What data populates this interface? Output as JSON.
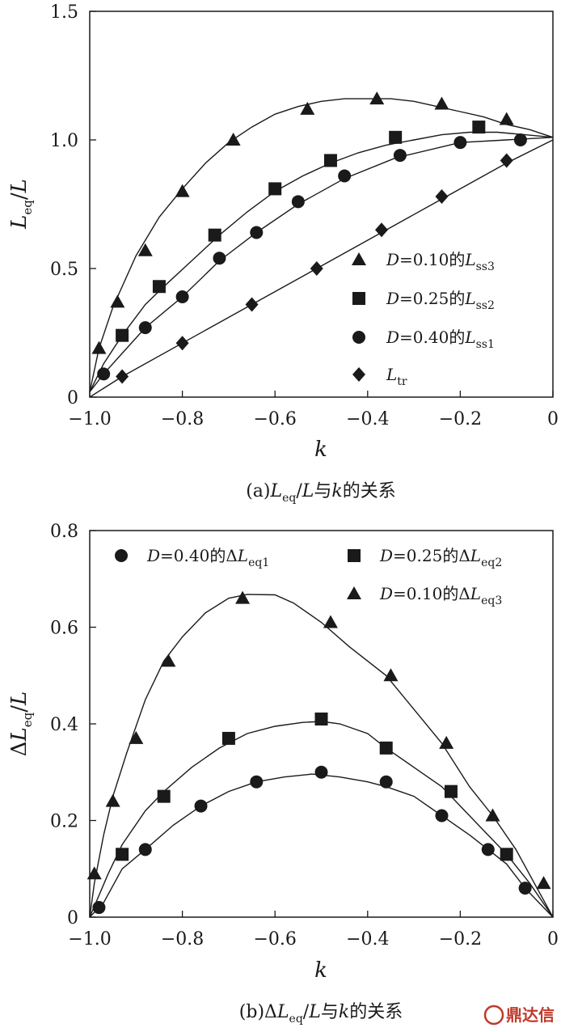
{
  "chart_data": [
    {
      "type": "line",
      "caption": "(a) Leq/L与k的关系",
      "xlabel": "k",
      "ylabel": "Leq/L",
      "xlim": [
        -1.0,
        0
      ],
      "ylim": [
        0,
        1.5
      ],
      "xticks": [
        -1.0,
        -0.8,
        -0.6,
        -0.4,
        -0.2,
        0
      ],
      "xtick_labels": [
        "−1.0",
        "−0.8",
        "−0.6",
        "−0.4",
        "−0.2",
        "0"
      ],
      "yticks": [
        0,
        0.5,
        1.0,
        1.5
      ],
      "ytick_labels": [
        "0",
        "0.5",
        "1.0",
        "1.5"
      ],
      "grid": false,
      "legend_position": "bottom-right",
      "series": [
        {
          "name": "D=0.10的Lss3",
          "marker": "triangle",
          "curve": [
            [
              -1.0,
              0.02
            ],
            [
              -0.98,
              0.19
            ],
            [
              -0.95,
              0.35
            ],
            [
              -0.9,
              0.55
            ],
            [
              -0.85,
              0.7
            ],
            [
              -0.8,
              0.81
            ],
            [
              -0.75,
              0.91
            ],
            [
              -0.7,
              0.99
            ],
            [
              -0.65,
              1.05
            ],
            [
              -0.6,
              1.1
            ],
            [
              -0.55,
              1.13
            ],
            [
              -0.5,
              1.15
            ],
            [
              -0.45,
              1.16
            ],
            [
              -0.4,
              1.16
            ],
            [
              -0.35,
              1.16
            ],
            [
              -0.3,
              1.15
            ],
            [
              -0.25,
              1.13
            ],
            [
              -0.2,
              1.11
            ],
            [
              -0.15,
              1.09
            ],
            [
              -0.1,
              1.06
            ],
            [
              -0.05,
              1.04
            ],
            [
              0.0,
              1.01
            ]
          ],
          "markers": [
            [
              -0.98,
              0.19
            ],
            [
              -0.94,
              0.37
            ],
            [
              -0.88,
              0.57
            ],
            [
              -0.8,
              0.8
            ],
            [
              -0.69,
              1.0
            ],
            [
              -0.53,
              1.12
            ],
            [
              -0.38,
              1.16
            ],
            [
              -0.24,
              1.14
            ],
            [
              -0.1,
              1.08
            ]
          ]
        },
        {
          "name": "D=0.25的Lss2",
          "marker": "square",
          "curve": [
            [
              -1.0,
              0.02
            ],
            [
              -0.97,
              0.13
            ],
            [
              -0.93,
              0.24
            ],
            [
              -0.88,
              0.36
            ],
            [
              -0.84,
              0.43
            ],
            [
              -0.78,
              0.53
            ],
            [
              -0.72,
              0.63
            ],
            [
              -0.66,
              0.72
            ],
            [
              -0.6,
              0.8
            ],
            [
              -0.54,
              0.86
            ],
            [
              -0.48,
              0.91
            ],
            [
              -0.42,
              0.95
            ],
            [
              -0.36,
              0.98
            ],
            [
              -0.3,
              1.0
            ],
            [
              -0.24,
              1.02
            ],
            [
              -0.18,
              1.03
            ],
            [
              -0.12,
              1.03
            ],
            [
              -0.06,
              1.02
            ],
            [
              0.0,
              1.01
            ]
          ],
          "markers": [
            [
              -0.93,
              0.24
            ],
            [
              -0.85,
              0.43
            ],
            [
              -0.73,
              0.63
            ],
            [
              -0.6,
              0.81
            ],
            [
              -0.48,
              0.92
            ],
            [
              -0.34,
              1.01
            ],
            [
              -0.16,
              1.05
            ]
          ]
        },
        {
          "name": "D=0.40的Lss1",
          "marker": "circle",
          "curve": [
            [
              -1.0,
              0.02
            ],
            [
              -0.97,
              0.09
            ],
            [
              -0.93,
              0.17
            ],
            [
              -0.88,
              0.27
            ],
            [
              -0.8,
              0.39
            ],
            [
              -0.72,
              0.53
            ],
            [
              -0.64,
              0.64
            ],
            [
              -0.55,
              0.75
            ],
            [
              -0.45,
              0.85
            ],
            [
              -0.34,
              0.93
            ],
            [
              -0.2,
              0.99
            ],
            [
              -0.1,
              1.0
            ],
            [
              0.0,
              1.01
            ]
          ],
          "markers": [
            [
              -0.97,
              0.09
            ],
            [
              -0.88,
              0.27
            ],
            [
              -0.8,
              0.39
            ],
            [
              -0.72,
              0.54
            ],
            [
              -0.64,
              0.64
            ],
            [
              -0.55,
              0.76
            ],
            [
              -0.45,
              0.86
            ],
            [
              -0.33,
              0.94
            ],
            [
              -0.2,
              0.99
            ],
            [
              -0.07,
              1.0
            ]
          ]
        },
        {
          "name": "Ltr",
          "marker": "diamond",
          "curve": [
            [
              -1.0,
              0.0
            ],
            [
              -0.93,
              0.08
            ],
            [
              -0.8,
              0.21
            ],
            [
              -0.65,
              0.36
            ],
            [
              -0.51,
              0.5
            ],
            [
              -0.37,
              0.64
            ],
            [
              -0.24,
              0.77
            ],
            [
              -0.1,
              0.91
            ],
            [
              0.0,
              1.0
            ]
          ],
          "markers": [
            [
              -0.93,
              0.08
            ],
            [
              -0.8,
              0.21
            ],
            [
              -0.65,
              0.36
            ],
            [
              -0.51,
              0.5
            ],
            [
              -0.37,
              0.65
            ],
            [
              -0.24,
              0.78
            ],
            [
              -0.1,
              0.92
            ]
          ]
        }
      ]
    },
    {
      "type": "line",
      "caption": "(b) ΔLeq/L与k的关系",
      "xlabel": "k",
      "ylabel": "ΔLeq/L",
      "xlim": [
        -1.0,
        0
      ],
      "ylim": [
        0,
        0.8
      ],
      "xticks": [
        -1.0,
        -0.8,
        -0.6,
        -0.4,
        -0.2,
        0
      ],
      "xtick_labels": [
        "−1.0",
        "−0.8",
        "−0.6",
        "−0.4",
        "−0.2",
        "0"
      ],
      "yticks": [
        0,
        0.2,
        0.4,
        0.6,
        0.8
      ],
      "ytick_labels": [
        "0",
        "0.2",
        "0.4",
        "0.6",
        "0.8"
      ],
      "grid": false,
      "legend_position": "top",
      "series": [
        {
          "name": "D=0.40的ΔLeq1",
          "marker": "circle",
          "curve": [
            [
              -1.0,
              0.0
            ],
            [
              -0.97,
              0.03
            ],
            [
              -0.93,
              0.1
            ],
            [
              -0.88,
              0.14
            ],
            [
              -0.82,
              0.19
            ],
            [
              -0.76,
              0.23
            ],
            [
              -0.7,
              0.26
            ],
            [
              -0.64,
              0.28
            ],
            [
              -0.58,
              0.29
            ],
            [
              -0.52,
              0.296
            ],
            [
              -0.46,
              0.29
            ],
            [
              -0.4,
              0.28
            ],
            [
              -0.36,
              0.27
            ],
            [
              -0.3,
              0.25
            ],
            [
              -0.24,
              0.21
            ],
            [
              -0.18,
              0.17
            ],
            [
              -0.14,
              0.14
            ],
            [
              -0.1,
              0.11
            ],
            [
              -0.06,
              0.06
            ],
            [
              -0.03,
              0.03
            ],
            [
              0.0,
              0.0
            ]
          ],
          "markers": [
            [
              -0.98,
              0.02
            ],
            [
              -0.88,
              0.14
            ],
            [
              -0.76,
              0.23
            ],
            [
              -0.64,
              0.28
            ],
            [
              -0.5,
              0.3
            ],
            [
              -0.36,
              0.28
            ],
            [
              -0.24,
              0.21
            ],
            [
              -0.14,
              0.14
            ],
            [
              -0.06,
              0.06
            ]
          ]
        },
        {
          "name": "D=0.25的ΔLeq2",
          "marker": "square",
          "curve": [
            [
              -1.0,
              0.0
            ],
            [
              -0.96,
              0.09
            ],
            [
              -0.93,
              0.15
            ],
            [
              -0.88,
              0.22
            ],
            [
              -0.84,
              0.26
            ],
            [
              -0.78,
              0.31
            ],
            [
              -0.72,
              0.35
            ],
            [
              -0.66,
              0.38
            ],
            [
              -0.6,
              0.395
            ],
            [
              -0.54,
              0.403
            ],
            [
              -0.5,
              0.405
            ],
            [
              -0.46,
              0.4
            ],
            [
              -0.4,
              0.38
            ],
            [
              -0.36,
              0.35
            ],
            [
              -0.3,
              0.31
            ],
            [
              -0.24,
              0.27
            ],
            [
              -0.2,
              0.23
            ],
            [
              -0.15,
              0.18
            ],
            [
              -0.1,
              0.13
            ],
            [
              -0.05,
              0.07
            ],
            [
              0.0,
              0.0
            ]
          ],
          "markers": [
            [
              -0.93,
              0.13
            ],
            [
              -0.84,
              0.25
            ],
            [
              -0.7,
              0.37
            ],
            [
              -0.5,
              0.41
            ],
            [
              -0.36,
              0.35
            ],
            [
              -0.22,
              0.26
            ],
            [
              -0.1,
              0.13
            ]
          ]
        },
        {
          "name": "D=0.10的ΔLeq3",
          "marker": "triangle",
          "curve": [
            [
              -1.0,
              0.0
            ],
            [
              -0.99,
              0.07
            ],
            [
              -0.97,
              0.17
            ],
            [
              -0.95,
              0.25
            ],
            [
              -0.92,
              0.34
            ],
            [
              -0.88,
              0.45
            ],
            [
              -0.84,
              0.53
            ],
            [
              -0.8,
              0.58
            ],
            [
              -0.75,
              0.63
            ],
            [
              -0.7,
              0.66
            ],
            [
              -0.66,
              0.668
            ],
            [
              -0.6,
              0.667
            ],
            [
              -0.56,
              0.65
            ],
            [
              -0.5,
              0.61
            ],
            [
              -0.44,
              0.56
            ],
            [
              -0.36,
              0.5
            ],
            [
              -0.3,
              0.43
            ],
            [
              -0.24,
              0.36
            ],
            [
              -0.18,
              0.27
            ],
            [
              -0.13,
              0.21
            ],
            [
              -0.08,
              0.14
            ],
            [
              -0.04,
              0.07
            ],
            [
              0.0,
              0.0
            ]
          ],
          "markers": [
            [
              -0.99,
              0.09
            ],
            [
              -0.95,
              0.24
            ],
            [
              -0.9,
              0.37
            ],
            [
              -0.83,
              0.53
            ],
            [
              -0.67,
              0.66
            ],
            [
              -0.48,
              0.61
            ],
            [
              -0.35,
              0.5
            ],
            [
              -0.23,
              0.36
            ],
            [
              -0.13,
              0.21
            ],
            [
              -0.02,
              0.07
            ]
          ]
        }
      ]
    }
  ],
  "watermark": {
    "text": "鼎达信",
    "logo": "seal-logo"
  }
}
